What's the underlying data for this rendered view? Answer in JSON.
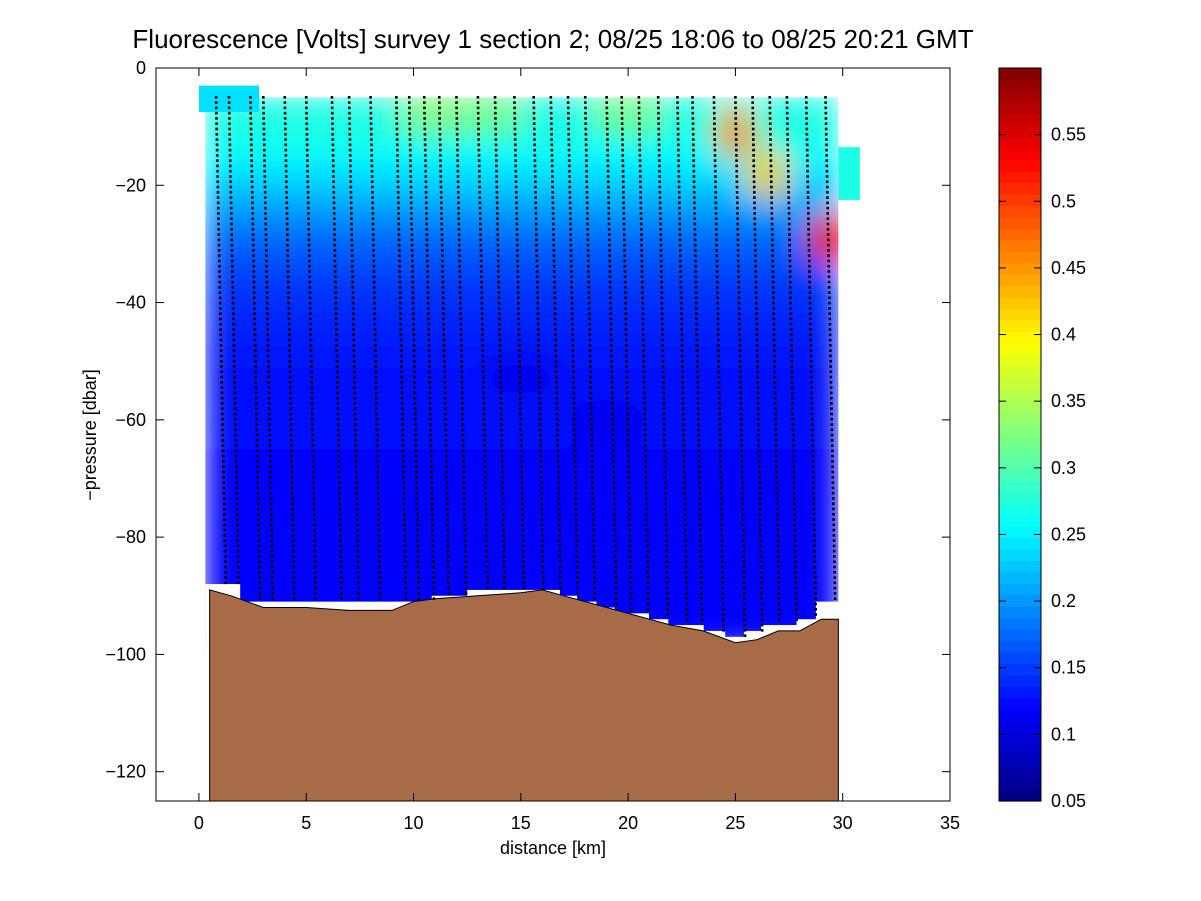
{
  "chart_data": {
    "type": "heatmap",
    "title": "Fluorescence [Volts] survey 1 section 2; 08/25 18:06 to 08/25 20:21 GMT",
    "xlabel": "distance [km]",
    "ylabel": "−pressure [dbar]",
    "xlim": [
      -2,
      35
    ],
    "ylim": [
      -125,
      0
    ],
    "x_ticks": [
      0,
      5,
      10,
      15,
      20,
      25,
      30,
      35
    ],
    "y_ticks": [
      0,
      -20,
      -40,
      -60,
      -80,
      -100,
      -120
    ],
    "x_tick_labels": [
      "0",
      "5",
      "10",
      "15",
      "20",
      "25",
      "30",
      "35"
    ],
    "y_tick_labels": [
      "0",
      "−20",
      "−40",
      "−60",
      "−80",
      "−100",
      "−120"
    ],
    "colorbar": {
      "colormap": "jet",
      "clim": [
        0.05,
        0.6
      ],
      "ticks": [
        0.05,
        0.1,
        0.15,
        0.2,
        0.25,
        0.3,
        0.35,
        0.4,
        0.45,
        0.5,
        0.55
      ],
      "tick_labels": [
        "0.05",
        "0.1",
        "0.15",
        "0.2",
        "0.25",
        "0.3",
        "0.35",
        "0.4",
        "0.45",
        "0.5",
        "0.55"
      ]
    },
    "profiles_km": [
      0.8,
      1.4,
      2.4,
      3.0,
      4.0,
      5.0,
      6.2,
      7.0,
      8.0,
      9.2,
      9.8,
      10.5,
      11.2,
      12.0,
      13.0,
      13.8,
      14.7,
      15.6,
      16.4,
      17.2,
      18.0,
      19.0,
      19.7,
      20.5,
      21.4,
      22.3,
      23.0,
      24.0,
      25.0,
      25.8,
      26.6,
      27.4,
      28.3,
      29.2
    ],
    "profile_top_dbar": -5,
    "profile_bottom_dbar": [
      -88,
      -88,
      -91,
      -91,
      -91,
      -91,
      -91,
      -91,
      -91,
      -91,
      -91,
      -91,
      -90,
      -90,
      -89,
      -89,
      -89,
      -89,
      -89,
      -90,
      -91,
      -92,
      -93,
      -93,
      -94,
      -95,
      -95,
      -96,
      -97,
      -96,
      -95,
      -95,
      -94,
      -91
    ],
    "background_level_by_depth": [
      {
        "depth": -5,
        "value": 0.27
      },
      {
        "depth": -12,
        "value": 0.27
      },
      {
        "depth": -20,
        "value": 0.23
      },
      {
        "depth": -28,
        "value": 0.18
      },
      {
        "depth": -36,
        "value": 0.15
      },
      {
        "depth": -48,
        "value": 0.13
      },
      {
        "depth": -70,
        "value": 0.12
      },
      {
        "depth": -95,
        "value": 0.12
      }
    ],
    "features": [
      {
        "x": 11.0,
        "y": -8,
        "value": 0.33
      },
      {
        "x": 13.5,
        "y": -8,
        "value": 0.32
      },
      {
        "x": 20.0,
        "y": -8,
        "value": 0.32
      },
      {
        "x": 25.0,
        "y": -11,
        "value": 0.45
      },
      {
        "x": 26.5,
        "y": -18,
        "value": 0.42
      },
      {
        "x": 29.4,
        "y": -29,
        "value": 0.52
      },
      {
        "x": 15.0,
        "y": -52,
        "value": 0.11
      },
      {
        "x": 19.0,
        "y": -60,
        "value": 0.11
      }
    ],
    "bathymetry": {
      "label": "seafloor",
      "color": "#a86b48",
      "points": [
        [
          0.5,
          -89
        ],
        [
          1.5,
          -90
        ],
        [
          3.0,
          -92
        ],
        [
          5.0,
          -92
        ],
        [
          7.0,
          -92.5
        ],
        [
          9.0,
          -92.5
        ],
        [
          10.0,
          -91
        ],
        [
          11.0,
          -90.5
        ],
        [
          13.0,
          -90
        ],
        [
          15.0,
          -89.5
        ],
        [
          16.0,
          -89
        ],
        [
          17.0,
          -90
        ],
        [
          18.0,
          -91
        ],
        [
          20.0,
          -93
        ],
        [
          22.0,
          -95
        ],
        [
          23.5,
          -96
        ],
        [
          25.0,
          -98
        ],
        [
          26.0,
          -97.5
        ],
        [
          27.0,
          -96
        ],
        [
          28.0,
          -96
        ],
        [
          29.0,
          -94
        ],
        [
          29.8,
          -94
        ]
      ]
    }
  }
}
